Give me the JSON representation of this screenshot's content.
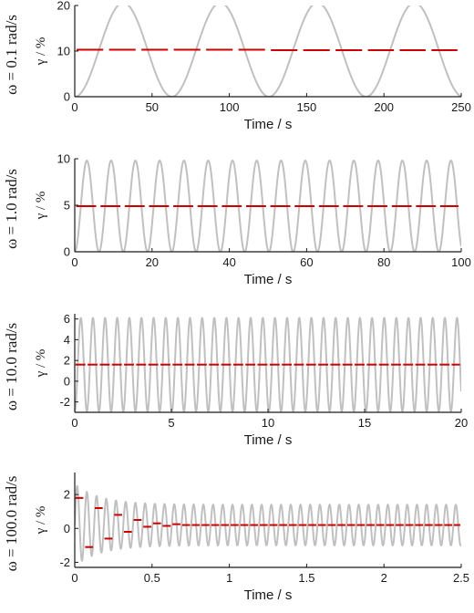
{
  "colors": {
    "signal": "#c0c0c0",
    "mean": "#cc0000",
    "axis": "#1a1a1a"
  },
  "chart_data": [
    {
      "type": "line",
      "row_label": "ω = 0.1 rad/s",
      "ylabel": "γ / %",
      "xlabel": "Time / s",
      "xlim": [
        0,
        250
      ],
      "ylim": [
        0,
        20
      ],
      "xticks": [
        "0",
        "50",
        "100",
        "150",
        "200",
        "250"
      ],
      "yticks": [
        "0",
        "10",
        "20"
      ],
      "xtick_values": [
        0,
        50,
        100,
        150,
        200,
        250
      ],
      "ytick_values": [
        0,
        10,
        20
      ],
      "series": [
        {
          "kind": "oscillation",
          "offset": 10.3,
          "amplitude": 10.3,
          "period": 62.8,
          "decay": 0
        },
        {
          "kind": "cycle-mean",
          "values": [
            10.3,
            10.3,
            10.2,
            10.2
          ],
          "style": "dashed"
        }
      ]
    },
    {
      "type": "line",
      "row_label": "ω = 1.0 rad/s",
      "ylabel": "γ / %",
      "xlabel": "Time / s",
      "xlim": [
        0,
        100
      ],
      "ylim": [
        0,
        10
      ],
      "xticks": [
        "0",
        "20",
        "40",
        "60",
        "80",
        "100"
      ],
      "yticks": [
        "0",
        "5",
        "10"
      ],
      "xtick_values": [
        0,
        20,
        40,
        60,
        80,
        100
      ],
      "ytick_values": [
        0,
        5,
        10
      ],
      "series": [
        {
          "kind": "oscillation",
          "offset": 4.9,
          "amplitude": 4.9,
          "period": 6.28,
          "decay": 0
        },
        {
          "kind": "cycle-mean",
          "constant": 4.9,
          "style": "dashed"
        }
      ]
    },
    {
      "type": "line",
      "row_label": "ω = 10.0 rad/s",
      "ylabel": "γ / %",
      "xlabel": "Time / s",
      "xlim": [
        0,
        20
      ],
      "ylim": [
        -3,
        6.5
      ],
      "xticks": [
        "0",
        "5",
        "10",
        "15",
        "20"
      ],
      "yticks": [
        "-2",
        "0",
        "2",
        "4",
        "6"
      ],
      "xtick_values": [
        0,
        5,
        10,
        15,
        20
      ],
      "ytick_values": [
        -2,
        0,
        2,
        4,
        6
      ],
      "series": [
        {
          "kind": "oscillation",
          "offset": 1.6,
          "amplitude": 4.5,
          "period": 0.628,
          "decay": 0
        },
        {
          "kind": "cycle-mean",
          "constant": 1.6,
          "style": "dashed"
        }
      ]
    },
    {
      "type": "line",
      "row_label": "ω = 100.0 rad/s",
      "ylabel": "γ / %",
      "xlabel": "Time / s",
      "xlim": [
        0,
        2.5
      ],
      "ylim": [
        -2.3,
        3.3
      ],
      "xticks": [
        "0",
        "0.5",
        "1",
        "1.5",
        "2",
        "2.5"
      ],
      "yticks": [
        "-2",
        "0",
        "2"
      ],
      "xtick_values": [
        0,
        0.5,
        1,
        1.5,
        2,
        2.5
      ],
      "ytick_values": [
        -2,
        0,
        2
      ],
      "series": [
        {
          "kind": "oscillation",
          "offset": 0.2,
          "amplitude": 1.2,
          "period": 0.0628,
          "transient_amplitude": 2.4,
          "transient_decay": 6
        },
        {
          "kind": "cycle-mean",
          "values": [
            1.8,
            -1.1,
            1.2,
            -0.6,
            0.8,
            -0.2,
            0.5,
            0.1,
            0.3,
            0.15,
            0.25,
            0.2
          ],
          "settled": 0.2,
          "style": "dashed"
        }
      ]
    }
  ]
}
